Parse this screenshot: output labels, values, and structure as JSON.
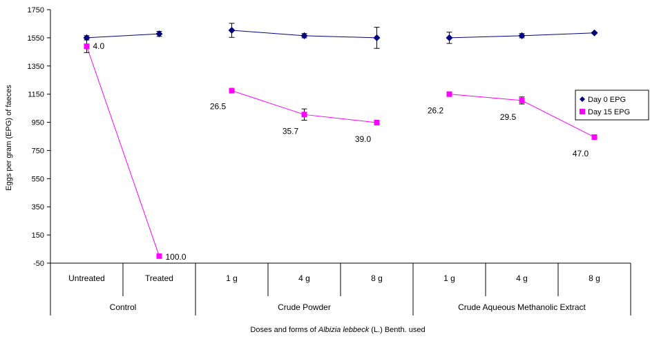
{
  "chart_data": {
    "type": "line",
    "xlabel_parts": [
      "Doses and forms of ",
      "Albizia lebbeck",
      " (L.) Benth.  used"
    ],
    "ylabel": "Eggs per gram (EPG) of faeces",
    "ylim": [
      -50,
      1750
    ],
    "yticks": [
      -50,
      150,
      350,
      550,
      750,
      950,
      1150,
      1350,
      1550,
      1750
    ],
    "groups": [
      {
        "label": "Control",
        "categories": [
          "Untreated",
          "Treated"
        ]
      },
      {
        "label": "Crude Powder",
        "categories": [
          "1 g",
          "4 g",
          "8 g"
        ]
      },
      {
        "label": "Crude Aqueous Methanolic Extract",
        "categories": [
          "1 g",
          "4 g",
          "8 g"
        ]
      }
    ],
    "series": [
      {
        "name": "Day 0 EPG",
        "color": "#000080",
        "marker": "diamond",
        "segments": [
          [
            0,
            1
          ],
          [
            2,
            3,
            4
          ],
          [
            5,
            6,
            7
          ]
        ],
        "values": [
          1550,
          1578,
          1603,
          1565,
          1550,
          1550,
          1565,
          1585
        ],
        "errors": [
          15,
          18,
          50,
          15,
          75,
          40,
          15,
          5
        ]
      },
      {
        "name": "Day 15 EPG",
        "color": "#FF00FF",
        "marker": "square",
        "segments": [
          [
            0,
            1
          ],
          [
            2,
            3,
            4
          ],
          [
            5,
            6,
            7
          ]
        ],
        "values": [
          1490,
          0,
          1175,
          1005,
          948,
          1150,
          1105,
          845
        ],
        "errors": [
          45,
          0,
          8,
          40,
          8,
          5,
          25,
          5
        ],
        "data_labels": [
          "4.0",
          "100.0",
          "26.5",
          "35.7",
          "39.0",
          "26.2",
          "29.5",
          "47.0"
        ]
      }
    ],
    "legend": {
      "position": "right"
    }
  }
}
